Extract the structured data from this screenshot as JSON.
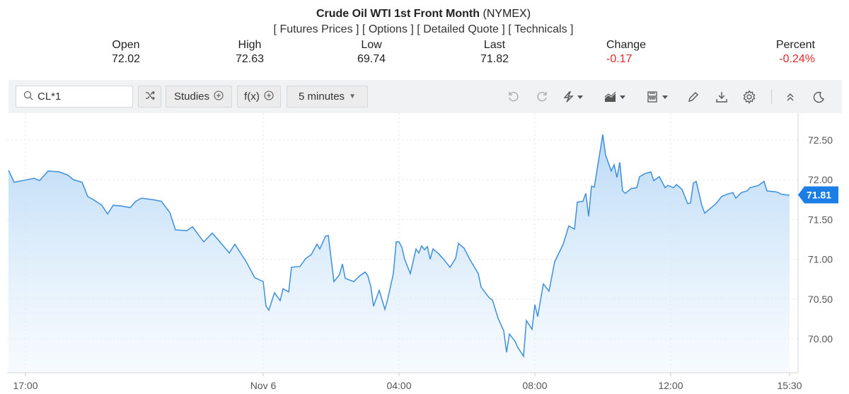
{
  "header": {
    "title": "Crude Oil WTI 1st Front Month",
    "exchange": "(NYMEX)",
    "links": [
      "Futures Prices",
      "Options",
      "Detailed Quote",
      "Technicals"
    ]
  },
  "stats": {
    "open": {
      "label": "Open",
      "value": "72.02"
    },
    "high": {
      "label": "High",
      "value": "72.63"
    },
    "low": {
      "label": "Low",
      "value": "69.74"
    },
    "last": {
      "label": "Last",
      "value": "71.82"
    },
    "change": {
      "label": "Change",
      "value": "-0.17"
    },
    "percent": {
      "label": "Percent",
      "value": "-0.24%"
    }
  },
  "toolbar": {
    "search_value": "CL*1",
    "studies_label": "Studies",
    "fx_label": "f(x)",
    "interval_label": "5 minutes",
    "icons": [
      "search-icon",
      "compare-icon",
      "undo-icon",
      "redo-icon",
      "lightning-icon",
      "chart-type-icon",
      "layout-icon",
      "pencil-icon",
      "download-icon",
      "gear-icon",
      "collapse-icon",
      "moon-icon"
    ]
  },
  "colors": {
    "line": "#3d8fdc",
    "fill_top": "#bcdcf7",
    "last_price_bg": "#1a7ee6",
    "negative": "#e0292b"
  },
  "chart_data": {
    "type": "area",
    "x_ticks": [
      "17:00",
      "Nov 6",
      "04:00",
      "08:00",
      "12:00",
      "15:30"
    ],
    "y_ticks": [
      "70.00",
      "70.50",
      "71.00",
      "71.50",
      "72.00",
      "72.50"
    ],
    "ylim": [
      69.62,
      72.85
    ],
    "grid": true,
    "last_price_label": "71.81",
    "x": [
      "16:30",
      "16:40",
      "16:55",
      "17:15",
      "17:25",
      "17:40",
      "18:00",
      "18:15",
      "18:25",
      "18:40",
      "18:50",
      "19:00",
      "19:15",
      "19:25",
      "19:35",
      "19:50",
      "20:05",
      "20:15",
      "20:25",
      "20:45",
      "21:00",
      "21:15",
      "21:25",
      "21:45",
      "21:55",
      "22:15",
      "22:30",
      "22:40",
      "23:00",
      "23:10",
      "23:30",
      "23:45",
      "00:00",
      "00:05",
      "00:10",
      "00:20",
      "00:30",
      "00:35",
      "00:45",
      "00:50",
      "01:05",
      "01:15",
      "01:25",
      "01:35",
      "01:40",
      "01:50",
      "01:55",
      "02:05",
      "02:15",
      "02:20",
      "02:25",
      "02:40",
      "02:50",
      "03:00",
      "03:05",
      "03:10",
      "03:15",
      "03:25",
      "03:35",
      "03:40",
      "03:50",
      "03:55",
      "04:00",
      "04:05",
      "04:10",
      "04:20",
      "04:30",
      "04:35",
      "04:40",
      "04:45",
      "04:50",
      "04:55",
      "05:00",
      "05:10",
      "05:20",
      "05:30",
      "05:40",
      "05:45",
      "05:55",
      "06:05",
      "06:20",
      "06:25",
      "06:40",
      "06:45",
      "06:55",
      "07:05",
      "07:10",
      "07:15",
      "07:25",
      "07:30",
      "07:40",
      "07:45",
      "07:55",
      "08:00",
      "08:05",
      "08:15",
      "08:25",
      "08:35",
      "08:50",
      "09:00",
      "09:10",
      "09:15",
      "09:25",
      "09:30",
      "09:35",
      "09:40",
      "09:45",
      "10:00",
      "10:05",
      "10:15",
      "10:20",
      "10:25",
      "10:30",
      "10:35",
      "10:40",
      "10:50",
      "11:00",
      "11:05",
      "11:15",
      "11:25",
      "11:30",
      "11:40",
      "11:50",
      "11:55",
      "12:05",
      "12:10",
      "12:20",
      "12:30",
      "12:35",
      "12:40",
      "12:45",
      "12:55",
      "13:00",
      "13:05",
      "13:20",
      "13:30",
      "13:40",
      "13:50",
      "13:55",
      "14:05",
      "14:15",
      "14:20",
      "14:35",
      "14:45",
      "14:50",
      "15:05",
      "15:10",
      "15:15",
      "15:25",
      "15:30"
    ],
    "y": [
      72.12,
      71.97,
      71.99,
      72.02,
      71.99,
      72.11,
      72.1,
      72.06,
      72.0,
      71.97,
      71.79,
      71.75,
      71.68,
      71.57,
      71.68,
      71.67,
      71.65,
      71.73,
      71.77,
      71.75,
      71.73,
      71.59,
      71.37,
      71.36,
      71.41,
      71.22,
      71.33,
      71.25,
      71.08,
      71.19,
      70.97,
      70.77,
      70.72,
      70.41,
      70.36,
      70.58,
      70.48,
      70.63,
      70.59,
      70.9,
      70.91,
      71.01,
      71.06,
      71.19,
      71.13,
      71.29,
      71.3,
      70.72,
      70.81,
      70.94,
      70.76,
      70.72,
      70.79,
      70.84,
      70.79,
      70.66,
      70.41,
      70.61,
      70.37,
      70.5,
      70.82,
      71.22,
      71.22,
      71.15,
      71.0,
      70.82,
      71.13,
      71.08,
      71.17,
      71.12,
      71.16,
      71.0,
      71.13,
      71.07,
      70.99,
      70.9,
      71.01,
      71.2,
      71.14,
      71.0,
      70.82,
      70.65,
      70.51,
      70.49,
      70.26,
      70.1,
      69.83,
      70.06,
      69.97,
      69.89,
      69.78,
      70.23,
      70.12,
      70.43,
      70.28,
      70.69,
      70.6,
      70.97,
      71.19,
      71.42,
      71.38,
      71.72,
      71.73,
      71.83,
      71.54,
      71.92,
      71.91,
      72.57,
      72.31,
      72.11,
      72.19,
      72.03,
      72.22,
      71.86,
      71.83,
      71.89,
      71.9,
      72.04,
      72.08,
      72.1,
      71.99,
      72.04,
      71.9,
      71.93,
      71.9,
      71.94,
      71.88,
      71.7,
      71.71,
      71.96,
      71.98,
      71.68,
      71.58,
      71.61,
      71.7,
      71.79,
      71.82,
      71.84,
      71.77,
      71.84,
      71.86,
      71.9,
      71.93,
      71.98,
      71.86,
      71.85,
      71.84,
      71.82,
      71.81,
      71.81
    ]
  }
}
